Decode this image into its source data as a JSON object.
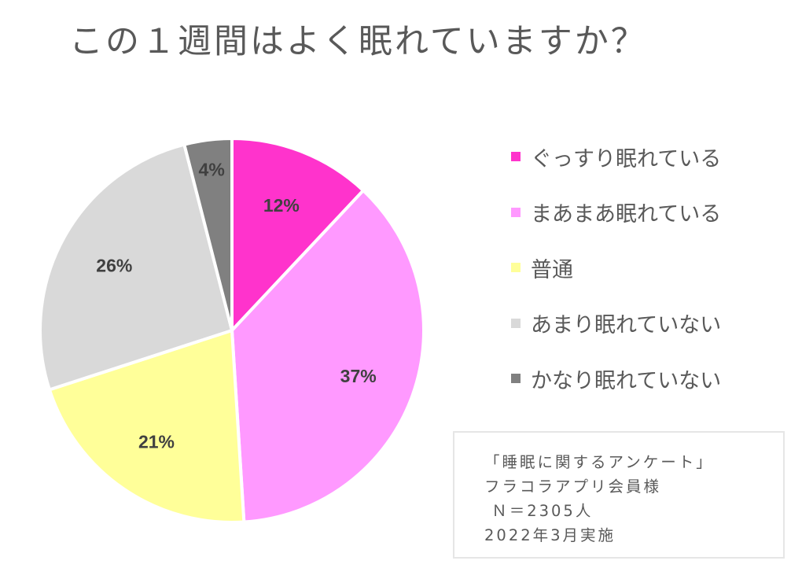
{
  "title": "この１週間はよく眠れていますか？",
  "chart_data": {
    "type": "pie",
    "title": "この１週間はよく眠れていますか？",
    "slices": [
      {
        "label": "ぐっすり眠れている",
        "value": 12,
        "display": "12%",
        "color": "#ff33cc"
      },
      {
        "label": "まあまあ眠れている",
        "value": 37,
        "display": "37%",
        "color": "#ff99ff"
      },
      {
        "label": "普通",
        "value": 21,
        "display": "21%",
        "color": "#ffff99"
      },
      {
        "label": "あまり眠れていない",
        "value": 26,
        "display": "26%",
        "color": "#d9d9d9"
      },
      {
        "label": "かなり眠れていない",
        "value": 4,
        "display": "4%",
        "color": "#808080"
      }
    ],
    "legend_position": "right",
    "slice_border_color": "#ffffff",
    "label_color": "#404040"
  },
  "note": {
    "lines": [
      "「睡眠に関するアンケート」",
      "フラコラアプリ会員様",
      " Ｎ＝2305人",
      "2022年3月実施"
    ]
  }
}
